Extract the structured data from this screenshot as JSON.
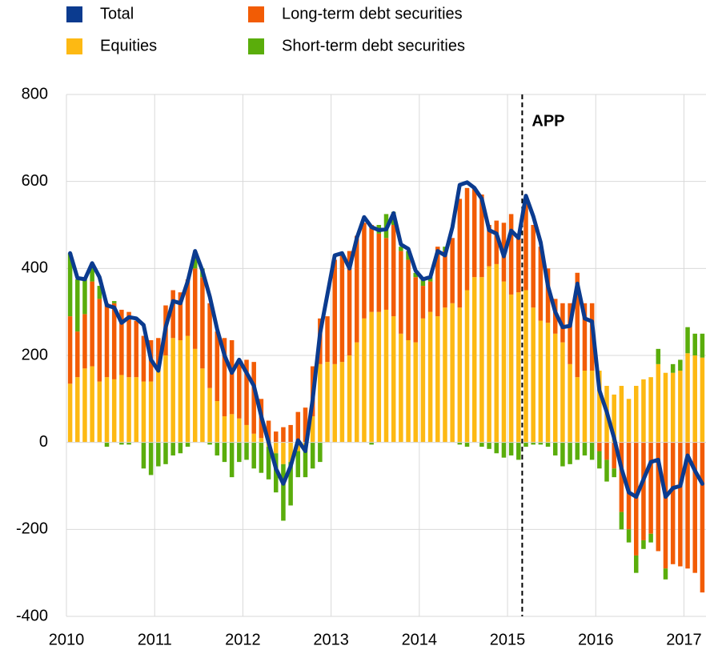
{
  "chart_data": {
    "type": "bar",
    "categories": [
      "2010",
      null,
      null,
      null,
      null,
      null,
      null,
      null,
      null,
      null,
      null,
      null,
      "2011",
      null,
      null,
      null,
      null,
      null,
      null,
      null,
      null,
      null,
      null,
      null,
      "2012",
      null,
      null,
      null,
      null,
      null,
      null,
      null,
      null,
      null,
      null,
      null,
      "2013",
      null,
      null,
      null,
      null,
      null,
      null,
      null,
      null,
      null,
      null,
      null,
      "2014",
      null,
      null,
      null,
      null,
      null,
      null,
      null,
      null,
      null,
      null,
      null,
      "2015",
      null,
      null,
      null,
      null,
      null,
      null,
      null,
      null,
      null,
      null,
      null,
      "2016",
      null,
      null,
      null,
      null,
      null,
      null,
      null,
      null,
      null,
      null,
      null,
      "2017",
      null,
      null
    ],
    "series": [
      {
        "name": "Total",
        "type": "line",
        "color": "#0b3b8f",
        "values": [
          435,
          378,
          375,
          412,
          380,
          315,
          310,
          275,
          288,
          285,
          270,
          190,
          165,
          265,
          325,
          320,
          370,
          440,
          395,
          335,
          260,
          200,
          160,
          190,
          160,
          130,
          60,
          0,
          -60,
          -95,
          -55,
          5,
          -20,
          100,
          250,
          340,
          430,
          435,
          400,
          470,
          518,
          495,
          488,
          490,
          527,
          455,
          445,
          395,
          375,
          380,
          440,
          430,
          495,
          592,
          598,
          585,
          560,
          488,
          480,
          428,
          487,
          470,
          567,
          520,
          460,
          360,
          300,
          265,
          268,
          365,
          285,
          278,
          120,
          70,
          10,
          -60,
          -115,
          -125,
          -85,
          -45,
          -40,
          -125,
          -105,
          -100,
          -30,
          -65,
          -95
        ]
      },
      {
        "name": "Equities",
        "type": "bar",
        "color": "#fdb913",
        "values": [
          135,
          150,
          170,
          175,
          140,
          150,
          145,
          155,
          150,
          150,
          140,
          140,
          165,
          200,
          240,
          235,
          245,
          215,
          170,
          125,
          95,
          60,
          65,
          55,
          40,
          20,
          10,
          -10,
          -25,
          -50,
          -45,
          -20,
          -20,
          60,
          180,
          185,
          180,
          185,
          200,
          230,
          285,
          300,
          300,
          305,
          290,
          250,
          235,
          230,
          285,
          300,
          290,
          310,
          320,
          310,
          350,
          380,
          380,
          405,
          410,
          370,
          340,
          345,
          350,
          310,
          280,
          275,
          250,
          230,
          180,
          150,
          165,
          165,
          165,
          130,
          110,
          130,
          100,
          130,
          145,
          150,
          180,
          160,
          160,
          165,
          205,
          200,
          195
        ]
      },
      {
        "name": "Long-term debt securities",
        "type": "bar",
        "color": "#f25c05",
        "values": [
          155,
          105,
          125,
          195,
          190,
          170,
          175,
          150,
          150,
          130,
          105,
          95,
          75,
          115,
          110,
          110,
          130,
          185,
          210,
          195,
          160,
          180,
          170,
          130,
          150,
          165,
          90,
          50,
          25,
          35,
          40,
          70,
          80,
          115,
          105,
          105,
          240,
          245,
          240,
          245,
          220,
          200,
          180,
          165,
          210,
          190,
          185,
          150,
          75,
          70,
          160,
          130,
          150,
          250,
          235,
          205,
          190,
          95,
          100,
          135,
          185,
          125,
          210,
          190,
          170,
          125,
          80,
          90,
          140,
          240,
          155,
          155,
          -20,
          -40,
          -60,
          -160,
          -200,
          -260,
          -225,
          -210,
          -250,
          -290,
          -280,
          -285,
          -290,
          -300,
          -345
        ]
      },
      {
        "name": "Short-term debt securities",
        "type": "bar",
        "color": "#5aad0b",
        "values": [
          145,
          120,
          80,
          40,
          30,
          -10,
          5,
          -5,
          -5,
          0,
          -60,
          -75,
          -55,
          -50,
          -30,
          -25,
          -10,
          30,
          20,
          -5,
          -30,
          -45,
          -80,
          -45,
          -40,
          -60,
          -70,
          -75,
          -90,
          -130,
          -100,
          -60,
          -60,
          -60,
          -45,
          0,
          0,
          0,
          0,
          0,
          0,
          -5,
          20,
          55,
          30,
          10,
          20,
          10,
          20,
          10,
          0,
          10,
          0,
          -5,
          -10,
          0,
          -10,
          -15,
          -25,
          -35,
          -30,
          -40,
          -10,
          -5,
          -5,
          -10,
          -30,
          -55,
          -50,
          -40,
          -30,
          -40,
          -40,
          -50,
          -20,
          -40,
          -30,
          -40,
          -20,
          -20,
          35,
          -25,
          20,
          25,
          60,
          50,
          55
        ]
      }
    ],
    "ylim": [
      -400,
      800
    ],
    "yticks": [
      -400,
      -200,
      0,
      200,
      400,
      600,
      800
    ],
    "grid": true,
    "annotation": {
      "text": "APP",
      "category_index": 62
    }
  }
}
